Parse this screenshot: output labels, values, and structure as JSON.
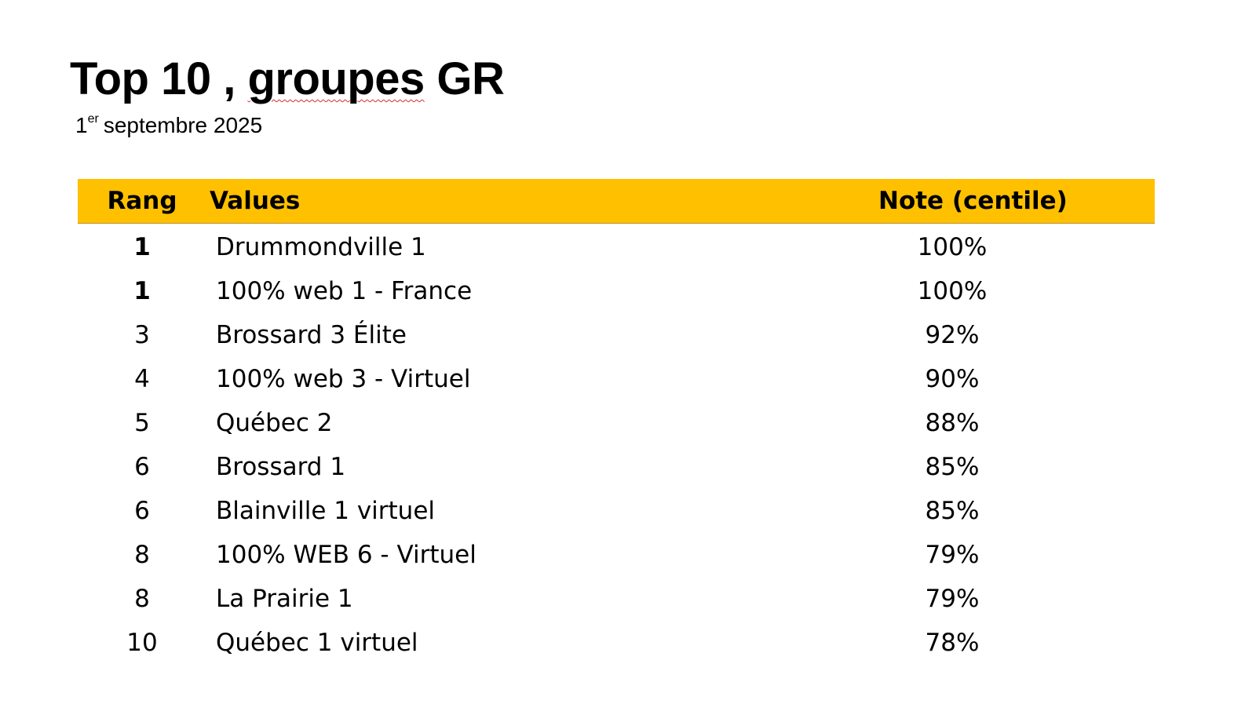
{
  "title": {
    "prefix": "Top 10 , ",
    "spell_word": "groupes",
    "suffix": " GR"
  },
  "subtitle": {
    "day": "1",
    "ordinal": "er",
    "rest": "septembre 2025"
  },
  "table": {
    "headers": {
      "rank": "Rang",
      "values": "Values",
      "note": "Note (centile)"
    },
    "rows": [
      {
        "rank": "1",
        "name": "Drummondville 1",
        "note": "100%"
      },
      {
        "rank": "1",
        "name": "100% web 1 - France",
        "note": "100%"
      },
      {
        "rank": "3",
        "name": "Brossard 3 Élite",
        "note": "92%"
      },
      {
        "rank": "4",
        "name": "100% web 3 - Virtuel",
        "note": "90%"
      },
      {
        "rank": "5",
        "name": "Québec 2",
        "note": "88%"
      },
      {
        "rank": "6",
        "name": "Brossard 1",
        "note": "85%"
      },
      {
        "rank": "6",
        "name": "Blainville 1 virtuel",
        "note": "85%"
      },
      {
        "rank": "8",
        "name": "100% WEB 6 - Virtuel",
        "note": "79%"
      },
      {
        "rank": "8",
        "name": "La Prairie 1",
        "note": "79%"
      },
      {
        "rank": "10",
        "name": "Québec 1 virtuel",
        "note": "78%"
      }
    ]
  },
  "colors": {
    "header_background": "#ffc000"
  }
}
